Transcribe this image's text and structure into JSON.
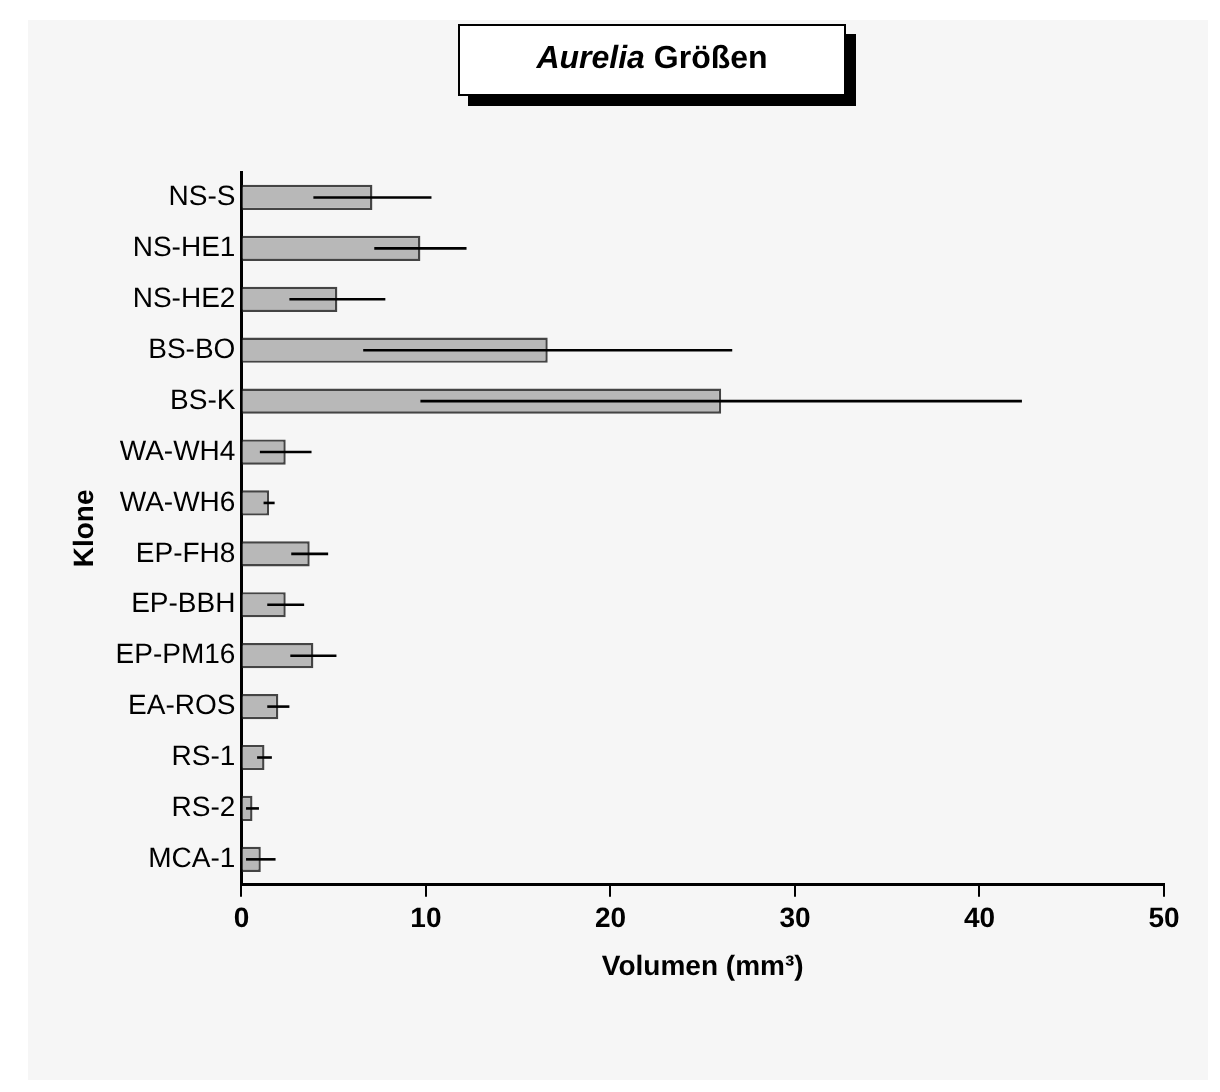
{
  "chart_data": {
    "type": "bar",
    "orientation": "horizontal",
    "title": "Aurelia Größen",
    "xlabel": "Volumen (mm³)",
    "ylabel": "Klone",
    "categories": [
      "NS-S",
      "NS-HE1",
      "NS-HE2",
      "BS-BO",
      "BS-K",
      "WA-WH4",
      "WA-WH6",
      "EP-FH8",
      "EP-BBH",
      "EP-PM16",
      "EA-ROS",
      "RS-1",
      "RS-2",
      "MCA-1"
    ],
    "values": [
      7.1,
      9.7,
      5.2,
      16.6,
      26.0,
      2.4,
      1.5,
      3.7,
      2.4,
      3.9,
      2.0,
      1.25,
      0.6,
      1.05
    ],
    "errors": [
      3.2,
      2.5,
      2.6,
      10.0,
      16.3,
      1.4,
      0.3,
      1.0,
      1.0,
      1.25,
      0.6,
      0.4,
      0.35,
      0.8
    ],
    "color": "#b8b8b8",
    "xlim": [
      0,
      50
    ],
    "xticks": [
      0,
      10,
      20,
      30,
      40,
      50
    ],
    "grid": false,
    "legend": false
  }
}
